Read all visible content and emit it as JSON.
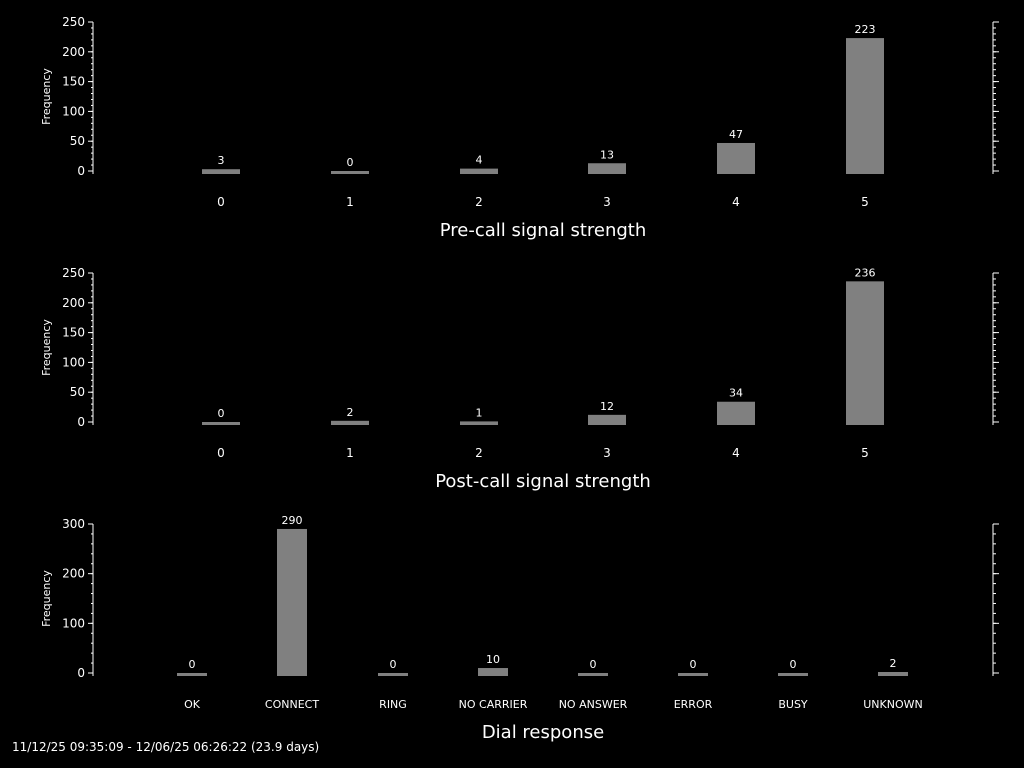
{
  "footer": "11/12/25 09:35:09 - 12/06/25 06:26:22 (23.9 days)",
  "colors": {
    "background": "#000000",
    "bar": "#808080",
    "axis": "#ffffff",
    "text": "#ffffff"
  },
  "chart_data": [
    {
      "type": "bar",
      "xlabel": "Pre-call signal strength",
      "ylabel": "Frequency",
      "categories": [
        "0",
        "1",
        "2",
        "3",
        "4",
        "5"
      ],
      "values": [
        3,
        0,
        4,
        13,
        47,
        223
      ],
      "ylim": [
        0,
        250
      ],
      "yticks": [
        0,
        50,
        100,
        150,
        200,
        250
      ]
    },
    {
      "type": "bar",
      "xlabel": "Post-call signal strength",
      "ylabel": "Frequency",
      "categories": [
        "0",
        "1",
        "2",
        "3",
        "4",
        "5"
      ],
      "values": [
        0,
        2,
        1,
        12,
        34,
        236
      ],
      "ylim": [
        0,
        250
      ],
      "yticks": [
        0,
        50,
        100,
        150,
        200,
        250
      ]
    },
    {
      "type": "bar",
      "xlabel": "Dial response",
      "ylabel": "Frequency",
      "categories": [
        "OK",
        "CONNECT",
        "RING",
        "NO CARRIER",
        "NO ANSWER",
        "ERROR",
        "BUSY",
        "UNKNOWN"
      ],
      "values": [
        0,
        290,
        0,
        10,
        0,
        0,
        0,
        2
      ],
      "ylim": [
        0,
        300
      ],
      "yticks": [
        0,
        100,
        200,
        300
      ]
    }
  ]
}
